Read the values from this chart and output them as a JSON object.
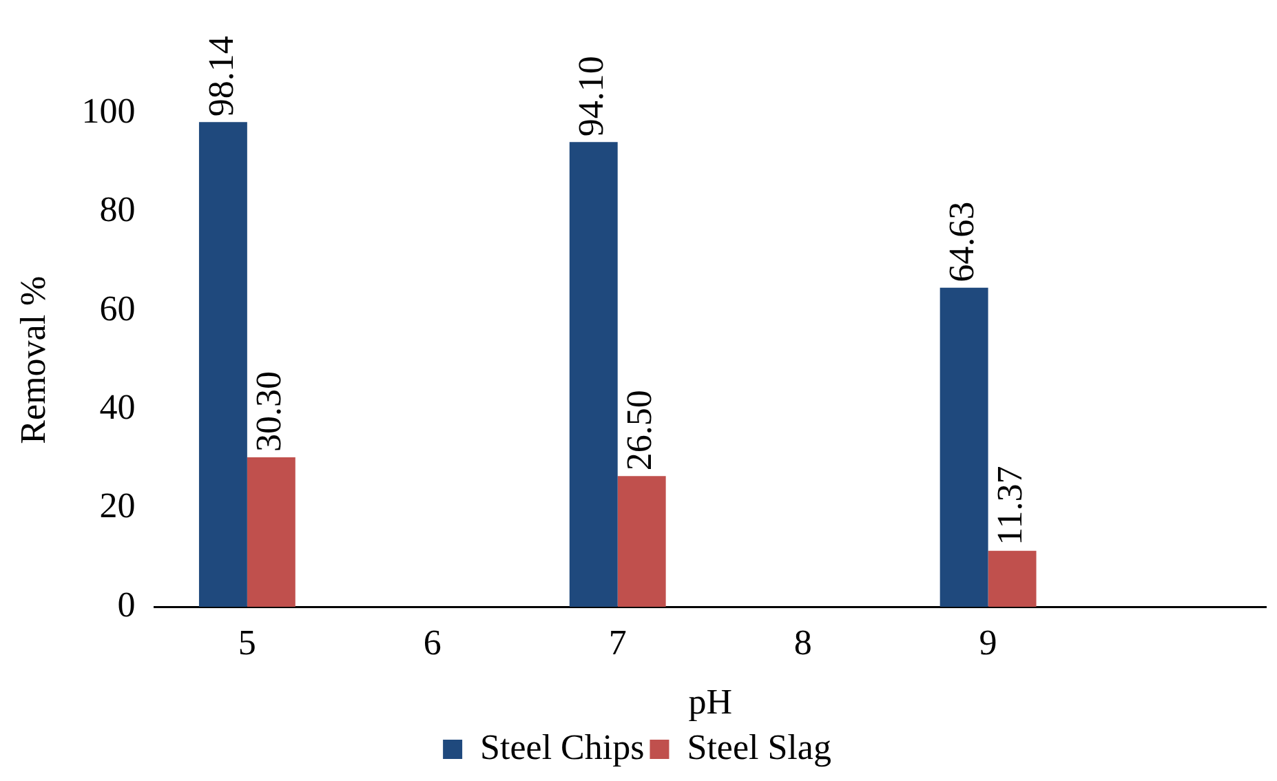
{
  "chart_data": {
    "type": "bar",
    "xlabel": "pH",
    "ylabel": "Removal %",
    "categories": [
      "5",
      "6",
      "7",
      "8",
      "9",
      null
    ],
    "series": [
      {
        "name": "Steel Chips",
        "color": "#1f497d",
        "values": [
          98.14,
          null,
          94.1,
          null,
          64.63,
          null
        ]
      },
      {
        "name": "Steel Slag",
        "color": "#c0504d",
        "values": [
          30.3,
          null,
          26.5,
          null,
          11.37,
          null
        ]
      }
    ],
    "value_labels": [
      [
        "98.14",
        null,
        "94.10",
        null,
        "64.63",
        null
      ],
      [
        "30.30",
        null,
        "26.50",
        null,
        "11.37",
        null
      ]
    ],
    "ylim": [
      0,
      100
    ],
    "yticks": [
      0,
      20,
      40,
      60,
      80,
      100
    ],
    "grid": false,
    "legend": "bottom"
  }
}
